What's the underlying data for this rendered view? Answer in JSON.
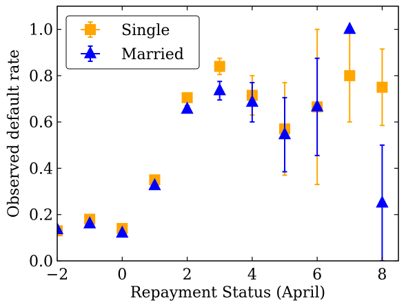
{
  "chart_data": {
    "type": "scatter",
    "xlabel": "Repayment Status (April)",
    "ylabel": "Observed default rate",
    "xlim": [
      -2,
      8.5
    ],
    "ylim": [
      0,
      1.1
    ],
    "xticks": [
      -2,
      0,
      2,
      4,
      6,
      8
    ],
    "xtick_labels": [
      "−2",
      "0",
      "2",
      "4",
      "6",
      "8"
    ],
    "yticks": [
      0,
      0.2,
      0.4,
      0.6,
      0.8,
      1.0
    ],
    "ytick_labels": [
      "0.0",
      "0.2",
      "0.4",
      "0.6",
      "0.8",
      "1.0"
    ],
    "grid": false,
    "legend_position": "top-left",
    "series": [
      {
        "name": "Single",
        "marker": "square",
        "color": "#ffa500",
        "x": [
          -2,
          -1,
          0,
          1,
          2,
          3,
          4,
          5,
          6,
          7,
          8
        ],
        "y": [
          0.13,
          0.18,
          0.14,
          0.35,
          0.705,
          0.84,
          0.715,
          0.57,
          0.665,
          0.8,
          0.75
        ],
        "err": [
          0.0,
          0.0,
          0.0,
          0.0,
          0.0,
          0.035,
          0.085,
          0.2,
          0.335,
          0.2,
          0.165
        ]
      },
      {
        "name": "Married",
        "marker": "triangle",
        "color": "#0000ff",
        "x": [
          -2,
          -1,
          0,
          1,
          2,
          3,
          4,
          5,
          6,
          7,
          8
        ],
        "y": [
          0.135,
          0.16,
          0.12,
          0.325,
          0.655,
          0.735,
          0.685,
          0.545,
          0.665,
          1.0,
          0.25
        ],
        "err": [
          0.0,
          0.0,
          0.0,
          0.0,
          0.015,
          0.04,
          0.085,
          0.16,
          0.21,
          0.0,
          0.25
        ]
      }
    ]
  }
}
